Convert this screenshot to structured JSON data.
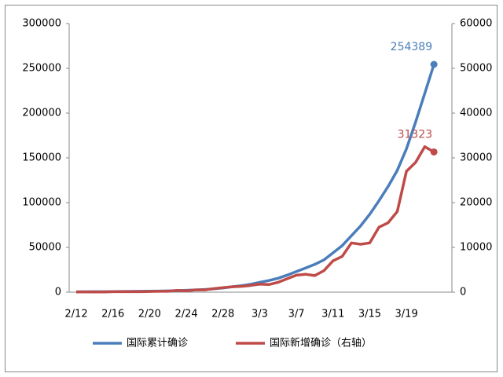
{
  "chart_data": {
    "type": "line",
    "categories": [
      "2/12",
      null,
      null,
      null,
      "2/16",
      null,
      null,
      null,
      "2/20",
      null,
      null,
      null,
      "2/24",
      null,
      null,
      null,
      "2/28",
      null,
      null,
      null,
      "3/3",
      null,
      null,
      null,
      "3/7",
      null,
      null,
      null,
      "3/11",
      null,
      null,
      null,
      "3/15",
      null,
      null,
      null,
      "3/19",
      null,
      null,
      null
    ],
    "series": [
      {
        "name": "国际累计确诊",
        "color": "#4a7ebb",
        "axis": "y",
        "values": [
          440,
          450,
          500,
          530,
          680,
          800,
          900,
          1000,
          1100,
          1200,
          1400,
          1800,
          2100,
          2500,
          3000,
          3700,
          4700,
          6000,
          7200,
          8800,
          11000,
          13000,
          15500,
          19000,
          23000,
          27000,
          31000,
          36000,
          44000,
          52000,
          63000,
          74000,
          87000,
          102000,
          118000,
          136000,
          160000,
          190000,
          222000,
          254389
        ]
      },
      {
        "name": "国际新增确诊（右轴）",
        "color": "#be4b48",
        "axis": "y2",
        "values": [
          50,
          60,
          50,
          40,
          100,
          100,
          100,
          100,
          150,
          200,
          200,
          400,
          300,
          500,
          500,
          800,
          1000,
          1200,
          1300,
          1500,
          1800,
          1700,
          2200,
          3000,
          3800,
          4000,
          3700,
          4800,
          7000,
          8000,
          11000,
          10700,
          11000,
          14500,
          15500,
          18000,
          27000,
          29000,
          32500,
          31323
        ]
      }
    ],
    "ylim": [
      0,
      300000
    ],
    "yticks": [
      0,
      50000,
      100000,
      150000,
      200000,
      250000,
      300000
    ],
    "y2lim": [
      0,
      60000
    ],
    "y2ticks": [
      0,
      10000,
      20000,
      30000,
      40000,
      50000,
      60000
    ],
    "legend": "bottom"
  }
}
